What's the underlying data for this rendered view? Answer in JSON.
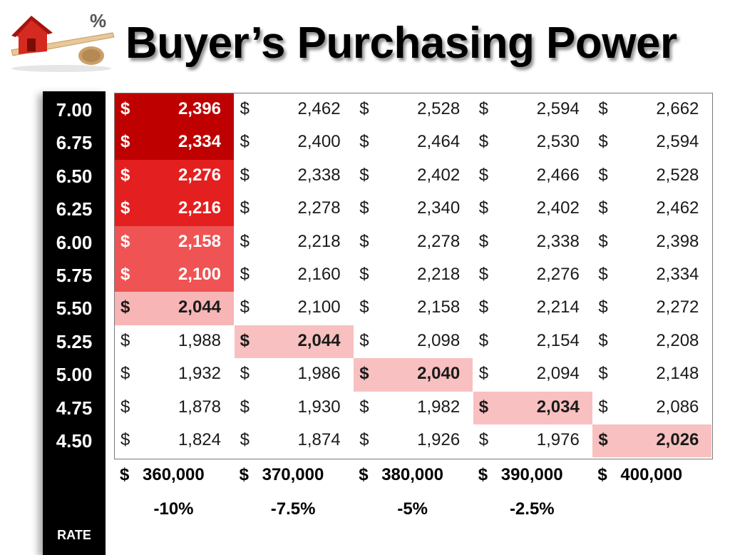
{
  "title": "Buyer’s Purchasing Power",
  "logo_icon": "house-on-seesaw-percent-icon",
  "rates": [
    "7.00",
    "6.75",
    "6.50",
    "6.25",
    "6.00",
    "5.75",
    "5.50",
    "5.25",
    "5.00",
    "4.75",
    "4.50"
  ],
  "rate_label": "RATE",
  "currency_symbol": "$",
  "prices": [
    "360,000",
    "370,000",
    "380,000",
    "390,000",
    "400,000"
  ],
  "percent_changes": [
    "-10%",
    "-7.5%",
    "-5%",
    "-2.5%",
    ""
  ],
  "payments": [
    [
      "2,396",
      "2,462",
      "2,528",
      "2,594",
      "2,662"
    ],
    [
      "2,334",
      "2,400",
      "2,464",
      "2,530",
      "2,594"
    ],
    [
      "2,276",
      "2,338",
      "2,402",
      "2,466",
      "2,528"
    ],
    [
      "2,216",
      "2,278",
      "2,340",
      "2,402",
      "2,462"
    ],
    [
      "2,158",
      "2,218",
      "2,278",
      "2,338",
      "2,398"
    ],
    [
      "2,100",
      "2,160",
      "2,218",
      "2,276",
      "2,334"
    ],
    [
      "2,044",
      "2,100",
      "2,158",
      "2,214",
      "2,272"
    ],
    [
      "1,988",
      "2,044",
      "2,098",
      "2,154",
      "2,208"
    ],
    [
      "1,932",
      "1,986",
      "2,040",
      "2,094",
      "2,148"
    ],
    [
      "1,878",
      "1,930",
      "1,982",
      "2,034",
      "2,086"
    ],
    [
      "1,824",
      "1,874",
      "1,926",
      "1,976",
      "2,026"
    ]
  ],
  "highlight_colors": {
    "dark_red": "#bf0000",
    "red": "#e3201f",
    "medium_red": "#ef5353",
    "light_pink": "#f7b5b5",
    "pink": "#f8c0c0"
  },
  "highlights": [
    {
      "row": 0,
      "col": 0,
      "color": "#bf0000",
      "style": "white"
    },
    {
      "row": 1,
      "col": 0,
      "color": "#bf0000",
      "style": "white"
    },
    {
      "row": 2,
      "col": 0,
      "color": "#e3201f",
      "style": "white"
    },
    {
      "row": 3,
      "col": 0,
      "color": "#e3201f",
      "style": "white"
    },
    {
      "row": 4,
      "col": 0,
      "color": "#ef5353",
      "style": "white"
    },
    {
      "row": 5,
      "col": 0,
      "color": "#ef5353",
      "style": "white"
    },
    {
      "row": 6,
      "col": 0,
      "color": "#f7b5b5",
      "style": "bold"
    },
    {
      "row": 7,
      "col": 1,
      "color": "#f8c0c0",
      "style": "bold"
    },
    {
      "row": 8,
      "col": 2,
      "color": "#f8c0c0",
      "style": "bold"
    },
    {
      "row": 9,
      "col": 3,
      "color": "#f8c0c0",
      "style": "bold"
    },
    {
      "row": 10,
      "col": 4,
      "color": "#f8c0c0",
      "style": "bold"
    }
  ]
}
